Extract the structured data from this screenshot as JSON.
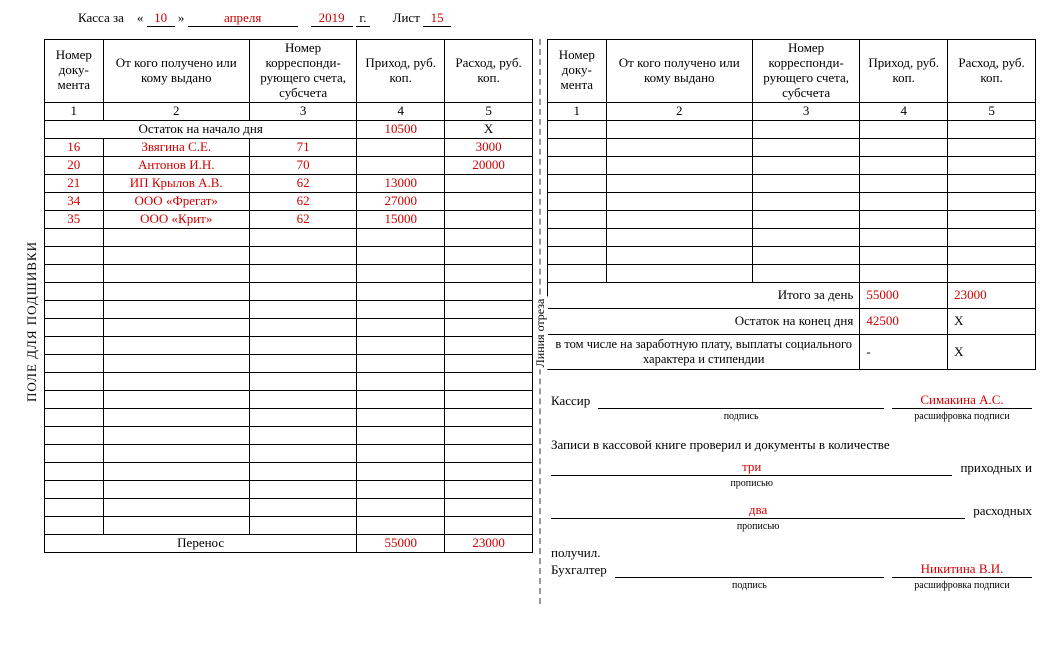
{
  "header": {
    "prefix": "Касса за",
    "quote_open": "«",
    "day": "10",
    "quote_close": "»",
    "month": "апреля",
    "year": "2019",
    "year_suffix": "г.",
    "sheet_label": "Лист",
    "sheet": "15"
  },
  "side_labels": {
    "binding": "ПОЛЕ ДЛЯ ПОДШИВКИ",
    "cut": "Линия отреза"
  },
  "columns": {
    "c1": "Номер доку-мента",
    "c2": "От кого получено или кому выдано",
    "c3": "Номер корреспонди-рующего счета, субсчета",
    "c4": "Приход, руб. коп.",
    "c5": "Расход, руб. коп.",
    "n1": "1",
    "n2": "2",
    "n3": "3",
    "n4": "4",
    "n5": "5"
  },
  "left": {
    "opening_label": "Остаток на начало дня",
    "opening_income": "10500",
    "opening_expense": "Х",
    "rows": [
      {
        "doc": "16",
        "who": "Звягина С.Е.",
        "acct": "71",
        "inc": "",
        "exp": "3000"
      },
      {
        "doc": "20",
        "who": "Антонов И.Н.",
        "acct": "70",
        "inc": "",
        "exp": "20000"
      },
      {
        "doc": "21",
        "who": "ИП Крылов А.В.",
        "acct": "62",
        "inc": "13000",
        "exp": ""
      },
      {
        "doc": "34",
        "who": "ООО «Фрегат»",
        "acct": "62",
        "inc": "27000",
        "exp": ""
      },
      {
        "doc": "35",
        "who": "ООО «Крит»",
        "acct": "62",
        "inc": "15000",
        "exp": ""
      }
    ],
    "carry_label": "Перенос",
    "carry_income": "55000",
    "carry_expense": "23000"
  },
  "right": {
    "total_label": "Итого за день",
    "total_income": "55000",
    "total_expense": "23000",
    "closing_label": "Остаток на конец дня",
    "closing_income": "42500",
    "closing_expense": "Х",
    "social_label": "в том числе на заработную плату, выплаты социального характера и стипендии",
    "social_income": "-",
    "social_expense": "Х"
  },
  "signatures": {
    "cashier_label": "Кассир",
    "cashier_name": "Симакина А.С.",
    "sig_caption": "подпись",
    "name_caption": "расшифровка подписи",
    "records_text": "Записи в кассовой книге проверил и документы в количестве",
    "income_count": "три",
    "income_suffix": "приходных и",
    "expense_count": "два",
    "expense_suffix": "расходных",
    "count_caption": "прописью",
    "received": "получил.",
    "accountant_label": "Бухгалтер",
    "accountant_name": "Никитина В.И."
  }
}
